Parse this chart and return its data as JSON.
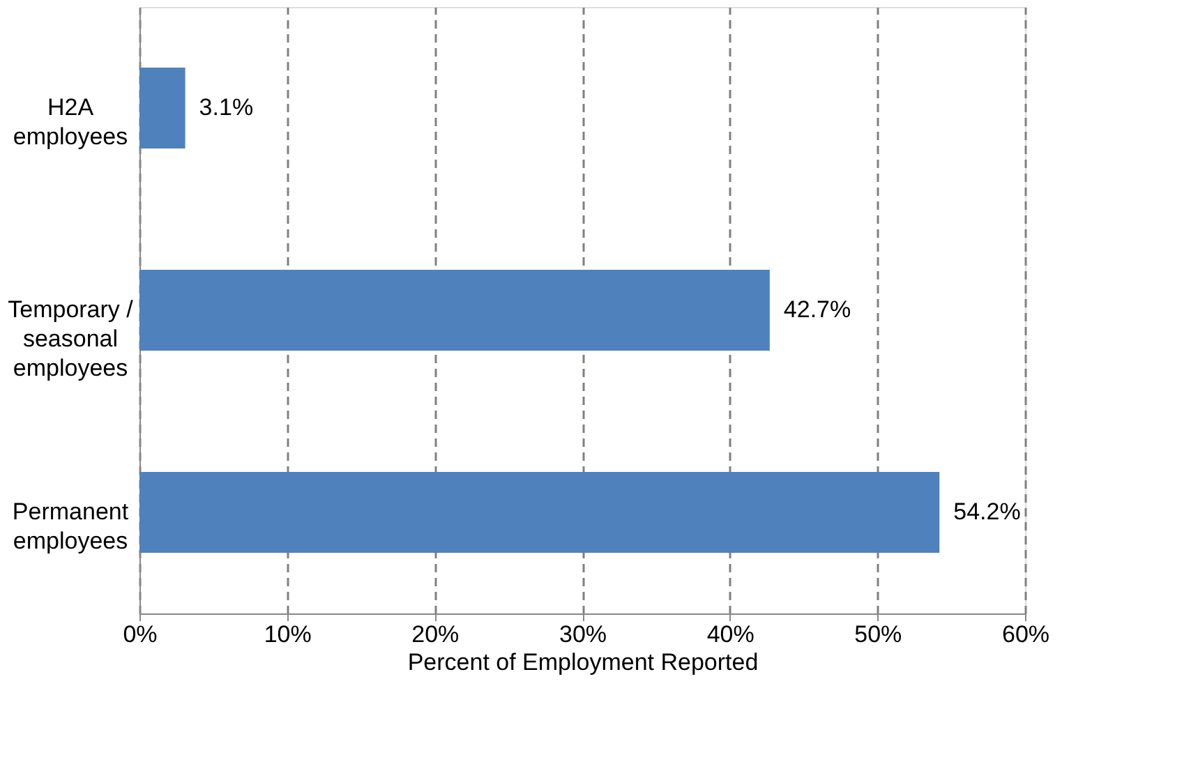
{
  "chart_data": {
    "type": "bar",
    "orientation": "horizontal",
    "xlabel": "Percent of Employment Reported",
    "categories": [
      "H2A employees",
      "Temporary / seasonal employees",
      "Permanent employees"
    ],
    "values": [
      3.1,
      42.7,
      54.2
    ],
    "color": "#4f81bd",
    "value_labels": [
      "3.1%",
      "42.7%",
      "54.2%"
    ],
    "xlim": [
      0,
      60
    ],
    "xticks": [
      {
        "value": 0,
        "label": "0%"
      },
      {
        "value": 10,
        "label": "10%"
      },
      {
        "value": 20,
        "label": "20%"
      },
      {
        "value": 30,
        "label": "30%"
      },
      {
        "value": 40,
        "label": "40%"
      },
      {
        "value": 50,
        "label": "50%"
      },
      {
        "value": 60,
        "label": "60%"
      }
    ],
    "grid": "x",
    "line_style": "dashed"
  }
}
